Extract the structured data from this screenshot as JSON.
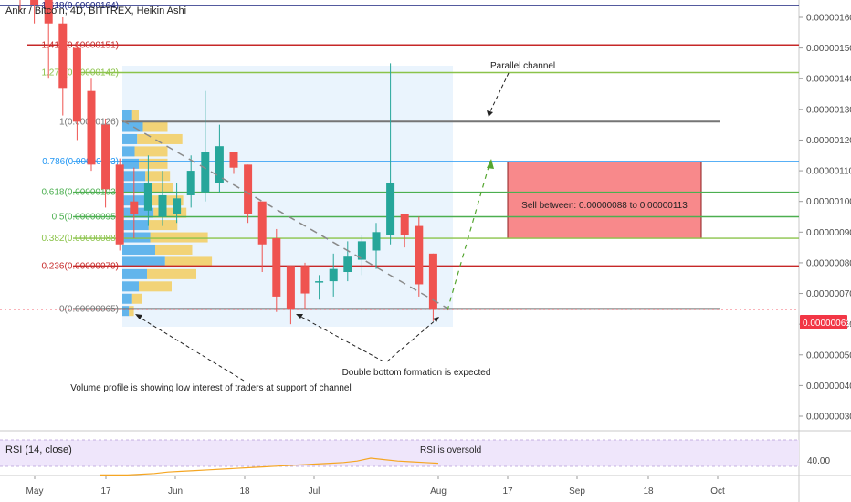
{
  "header": {
    "title": "Ankr / Bitcoin, 4D, BITTREX, Heikin Ashi"
  },
  "rsi_panel": {
    "label": "RSI (14, close)",
    "annotation": "RSI is oversold",
    "level_label": "40.00",
    "values": [
      31,
      31,
      31,
      31.5,
      32,
      33,
      33.5,
      34,
      34.5,
      35,
      35.5,
      36,
      36.5,
      37,
      37.5,
      38,
      38.5,
      39,
      39.5,
      40.5,
      42.5,
      41.5,
      40.5,
      40,
      39.5,
      39
    ],
    "line_color": "#f5a623"
  },
  "annotations": {
    "parallel_channel": "Parallel channel",
    "volume_profile": "Volume profile is showing low interest of traders at support of channel",
    "double_bottom": "Double bottom formation is expected",
    "sell_zone": "Sell between: 0.00000088 to 0.00000113"
  },
  "colors": {
    "bull": "#26a69a",
    "bear": "#ef5350",
    "sell_zone": "#f8898b",
    "volume_up": "#4aa9e9",
    "volume_down": "#f4c84a"
  },
  "chart_data": {
    "type": "candlestick",
    "title": "Ankr / Bitcoin, 4D, BITTREX, Heikin Ashi",
    "x_tick_labels": [
      "May",
      "17",
      "Jun",
      "18",
      "Jul",
      "Aug",
      "17",
      "Sep",
      "18",
      "Oct"
    ],
    "y_tick_labels": [
      "0.00000160",
      "0.00000150",
      "0.00000140",
      "0.00000130",
      "0.00000120",
      "0.00000110",
      "0.00000100",
      "0.00000090",
      "0.00000080",
      "0.00000070",
      "0.00000060",
      "0.00000050",
      "0.00000040",
      "0.00000030"
    ],
    "ylim": [
      2.6e-07,
      1.64e-06
    ],
    "last_price_label": "0.00000061",
    "fib_levels": [
      {
        "label": "1.618(0.00000164)",
        "value": 1.64e-06,
        "color": "#1a237e"
      },
      {
        "label": "1.414(0.00000151)",
        "value": 1.51e-06,
        "color": "#c62828"
      },
      {
        "label": "1.272(0.00000142)",
        "value": 1.42e-06,
        "color": "#8bc34a"
      },
      {
        "label": "1(0.00000126)",
        "value": 1.26e-06,
        "color": "#757575"
      },
      {
        "label": "0.786(0.00000113)",
        "value": 1.13e-06,
        "color": "#2196f3"
      },
      {
        "label": "0.618(0.00000103)",
        "value": 1.03e-06,
        "color": "#4caf50"
      },
      {
        "label": "0.5(0.00000095)",
        "value": 9.5e-07,
        "color": "#4caf50"
      },
      {
        "label": "0.382(0.00000088)",
        "value": 8.8e-07,
        "color": "#8bc34a"
      },
      {
        "label": "0.236(0.00000079)",
        "value": 7.9e-07,
        "color": "#c62828"
      },
      {
        "label": "0(0.00000065)",
        "value": 6.5e-07,
        "color": "#757575"
      }
    ],
    "candles": [
      {
        "o": 170,
        "h": 172,
        "l": 162,
        "c": 166
      },
      {
        "o": 170,
        "h": 172,
        "l": 158,
        "c": 164
      },
      {
        "o": 166,
        "h": 168,
        "l": 140,
        "c": 158
      },
      {
        "o": 158,
        "h": 160,
        "l": 128,
        "c": 137
      },
      {
        "o": 150,
        "h": 152,
        "l": 120,
        "c": 126
      },
      {
        "o": 136,
        "h": 140,
        "l": 110,
        "c": 112
      },
      {
        "o": 125,
        "h": 127,
        "l": 98,
        "c": 104
      },
      {
        "o": 112,
        "h": 114,
        "l": 84,
        "c": 86
      },
      {
        "o": 100,
        "h": 111,
        "l": 88,
        "c": 96
      },
      {
        "o": 97,
        "h": 115,
        "l": 92,
        "c": 106
      },
      {
        "o": 95,
        "h": 110,
        "l": 92,
        "c": 102
      },
      {
        "o": 96,
        "h": 106,
        "l": 93,
        "c": 101
      },
      {
        "o": 102,
        "h": 115,
        "l": 98,
        "c": 110
      },
      {
        "o": 103,
        "h": 136,
        "l": 100,
        "c": 116
      },
      {
        "o": 106,
        "h": 125,
        "l": 103,
        "c": 118
      },
      {
        "o": 116,
        "h": 116,
        "l": 109,
        "c": 111
      },
      {
        "o": 112,
        "h": 112,
        "l": 93,
        "c": 96
      },
      {
        "o": 100,
        "h": 100,
        "l": 77,
        "c": 86
      },
      {
        "o": 88,
        "h": 91,
        "l": 64,
        "c": 69
      },
      {
        "o": 79,
        "h": 79,
        "l": 60,
        "c": 65
      },
      {
        "o": 79,
        "h": 80,
        "l": 65,
        "c": 70
      },
      {
        "o": 74,
        "h": 76,
        "l": 68,
        "c": 74
      },
      {
        "o": 74,
        "h": 83,
        "l": 69,
        "c": 78
      },
      {
        "o": 77,
        "h": 87,
        "l": 74,
        "c": 82
      },
      {
        "o": 81,
        "h": 89,
        "l": 76,
        "c": 87
      },
      {
        "o": 84,
        "h": 93,
        "l": 78,
        "c": 90
      },
      {
        "o": 89,
        "h": 145,
        "l": 86,
        "c": 106
      },
      {
        "o": 96,
        "h": 96,
        "l": 85,
        "c": 89
      },
      {
        "o": 92,
        "h": 95,
        "l": 69,
        "c": 73
      },
      {
        "o": 83,
        "h": 83,
        "l": 61,
        "c": 65
      }
    ],
    "volume_profile": [
      {
        "value": 1.28e-06,
        "up": 12,
        "down": 8
      },
      {
        "value": 1.24e-06,
        "up": 25,
        "down": 30
      },
      {
        "value": 1.2e-06,
        "up": 18,
        "down": 55
      },
      {
        "value": 1.16e-06,
        "up": 15,
        "down": 40
      },
      {
        "value": 1.12e-06,
        "up": 20,
        "down": 35
      },
      {
        "value": 1.08e-06,
        "up": 28,
        "down": 30
      },
      {
        "value": 1.04e-06,
        "up": 30,
        "down": 32
      },
      {
        "value": 1e-06,
        "up": 34,
        "down": 40
      },
      {
        "value": 9.6e-07,
        "up": 38,
        "down": 40
      },
      {
        "value": 9.2e-07,
        "up": 32,
        "down": 35
      },
      {
        "value": 8.8e-07,
        "up": 34,
        "down": 70
      },
      {
        "value": 8.4e-07,
        "up": 40,
        "down": 45
      },
      {
        "value": 8e-07,
        "up": 52,
        "down": 57
      },
      {
        "value": 7.6e-07,
        "up": 30,
        "down": 60
      },
      {
        "value": 7.2e-07,
        "up": 20,
        "down": 40
      },
      {
        "value": 6.8e-07,
        "up": 12,
        "down": 12
      },
      {
        "value": 6.4e-07,
        "up": 8,
        "down": 6
      }
    ],
    "sell_zone": {
      "low": 8.8e-07,
      "high": 1.13e-06
    }
  }
}
